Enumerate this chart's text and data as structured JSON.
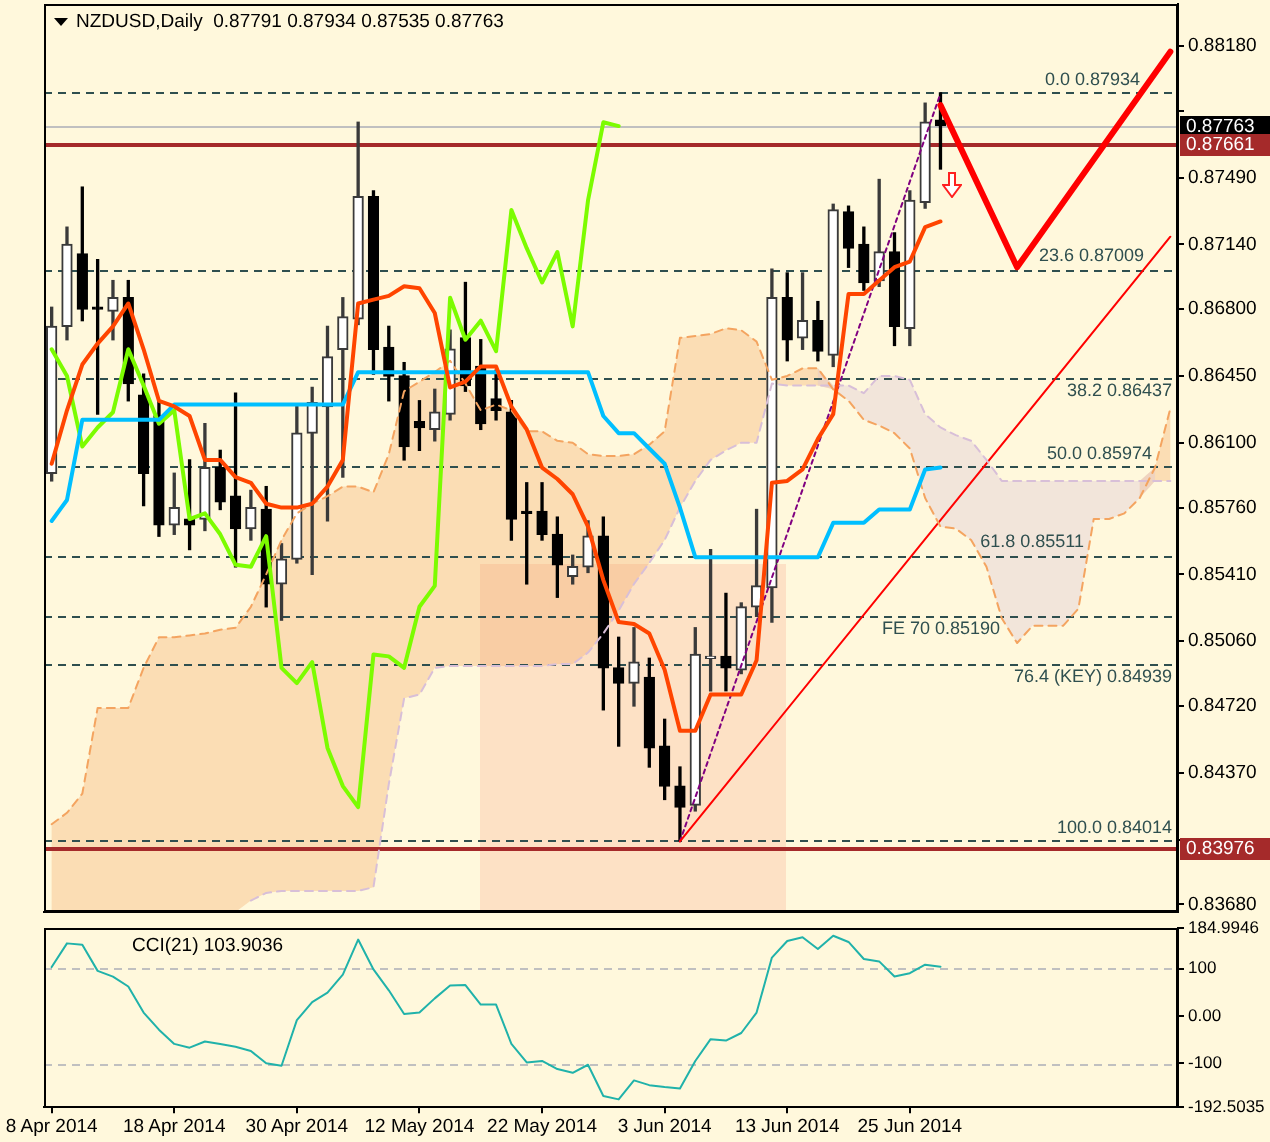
{
  "chart_data": [
    {
      "type": "candlestick",
      "title": "NZDUSD,Daily  0.87791 0.87934 0.87535 0.87763",
      "categories": [
        null,
        null,
        null,
        null,
        null,
        null,
        null,
        null,
        null,
        null,
        null,
        null,
        null,
        null,
        null,
        null,
        null,
        null,
        null,
        null,
        null,
        null,
        null,
        null,
        null,
        null,
        null,
        null,
        null,
        null,
        null,
        null,
        null,
        null,
        null,
        null,
        null,
        null,
        null,
        null,
        null,
        null,
        null,
        null,
        null,
        null,
        null,
        null,
        null,
        null,
        null,
        null,
        null,
        null,
        null,
        null,
        null,
        null,
        null,
        null,
        null,
        null,
        null,
        null,
        null,
        null,
        null,
        null,
        null,
        null,
        null,
        null,
        null,
        null
      ],
      "ohlc": [
        [
          0.8594,
          0.8681,
          0.859,
          0.8671
        ],
        [
          0.8671,
          0.8723,
          0.8664,
          0.8714
        ],
        [
          0.8709,
          0.8744,
          0.8674,
          0.868
        ],
        [
          0.8681,
          0.8706,
          0.8625,
          0.868
        ],
        [
          0.8679,
          0.8695,
          0.8664,
          0.8686
        ],
        [
          0.8686,
          0.8695,
          0.8632,
          0.8641
        ],
        [
          0.8635,
          0.8646,
          0.8577,
          0.8594
        ],
        [
          0.8624,
          0.8632,
          0.8561,
          0.8567
        ],
        [
          0.8567,
          0.8594,
          0.8562,
          0.8576
        ],
        [
          0.857,
          0.8601,
          0.8554,
          0.8567
        ],
        [
          0.857,
          0.862,
          0.8564,
          0.8597
        ],
        [
          0.8597,
          0.8606,
          0.8575,
          0.8579
        ],
        [
          0.8582,
          0.8636,
          0.8545,
          0.8565
        ],
        [
          0.8565,
          0.8585,
          0.8559,
          0.8576
        ],
        [
          0.8575,
          0.8587,
          0.8524,
          0.8536
        ],
        [
          0.8536,
          0.8557,
          0.8517,
          0.8549
        ],
        [
          0.8549,
          0.8629,
          0.8547,
          0.8615
        ],
        [
          0.8615,
          0.8639,
          0.8541,
          0.8631
        ],
        [
          0.8629,
          0.8671,
          0.8569,
          0.8655
        ],
        [
          0.8659,
          0.8686,
          0.8592,
          0.8676
        ],
        [
          0.8675,
          0.8778,
          0.8672,
          0.8739
        ],
        [
          0.8739,
          0.8742,
          0.8646,
          0.8659
        ],
        [
          0.866,
          0.8671,
          0.8632,
          0.8645
        ],
        [
          0.8645,
          0.8652,
          0.8601,
          0.8608
        ],
        [
          0.8621,
          0.8632,
          0.8606,
          0.8618
        ],
        [
          0.8617,
          0.8638,
          0.8611,
          0.8626
        ],
        [
          0.8625,
          0.8669,
          0.8622,
          0.8659
        ],
        [
          0.8665,
          0.8694,
          0.8637,
          0.864
        ],
        [
          0.865,
          0.8664,
          0.8617,
          0.862
        ],
        [
          0.8633,
          0.8648,
          0.8622,
          0.8627
        ],
        [
          0.8626,
          0.8632,
          0.8559,
          0.857
        ],
        [
          0.8574,
          0.8589,
          0.8536,
          0.8573
        ],
        [
          0.8574,
          0.8589,
          0.8559,
          0.8562
        ],
        [
          0.8562,
          0.8571,
          0.8529,
          0.8546
        ],
        [
          0.854,
          0.8551,
          0.8536,
          0.8545
        ],
        [
          0.8545,
          0.8569,
          0.8542,
          0.8561
        ],
        [
          0.8561,
          0.8571,
          0.847,
          0.8492
        ],
        [
          0.8492,
          0.8508,
          0.8451,
          0.8484
        ],
        [
          0.8484,
          0.8513,
          0.8472,
          0.8495
        ],
        [
          0.8487,
          0.8497,
          0.844,
          0.845
        ],
        [
          0.8451,
          0.8465,
          0.8423,
          0.843
        ],
        [
          0.843,
          0.844,
          0.84014,
          0.8419
        ],
        [
          0.842,
          0.8513,
          0.8417,
          0.8499
        ],
        [
          0.8497,
          0.8554,
          0.848,
          0.8498
        ],
        [
          0.8498,
          0.8531,
          0.848,
          0.8492
        ],
        [
          0.8491,
          0.8526,
          0.8489,
          0.8524
        ],
        [
          0.8524,
          0.8575,
          0.8519,
          0.8535
        ],
        [
          0.8534,
          0.8701,
          0.8516,
          0.8686
        ],
        [
          0.8686,
          0.8699,
          0.8653,
          0.8664
        ],
        [
          0.8665,
          0.8699,
          0.8659,
          0.8674
        ],
        [
          0.8674,
          0.8684,
          0.8653,
          0.8658
        ],
        [
          0.8656,
          0.8735,
          0.865,
          0.8732
        ],
        [
          0.8731,
          0.8734,
          0.8702,
          0.8712
        ],
        [
          0.8714,
          0.8723,
          0.869,
          0.8694
        ],
        [
          0.8695,
          0.8748,
          0.8692,
          0.871
        ],
        [
          0.871,
          0.872,
          0.8661,
          0.8671
        ],
        [
          0.867,
          0.8742,
          0.8661,
          0.8737
        ],
        [
          0.8736,
          0.8788,
          0.8733,
          0.8778
        ],
        [
          0.87791,
          0.87934,
          0.87535,
          0.87763
        ],
        null,
        null,
        null,
        null,
        null,
        null,
        null,
        null,
        null,
        null,
        null,
        null,
        null,
        null,
        null
      ],
      "series": [
        {
          "type": "line",
          "color": "#ff4500",
          "values": [
            0.8599,
            0.8627,
            0.8651,
            0.8662,
            0.8671,
            0.8683,
            0.8659,
            0.8632,
            0.8629,
            0.8624,
            0.8601,
            0.8601,
            0.8592,
            0.8589,
            0.8578,
            0.8576,
            0.8576,
            0.8578,
            0.8587,
            0.8601,
            0.8683,
            0.8685,
            0.8687,
            0.8692,
            0.8691,
            0.8678,
            0.8639,
            0.8642,
            0.865,
            0.865,
            0.8629,
            0.8617,
            0.8597,
            0.8591,
            0.8583,
            0.8566,
            0.8538,
            0.8516,
            0.8515,
            0.851,
            0.8491,
            0.8459,
            0.8459,
            0.8478,
            0.8478,
            0.8478,
            0.8496,
            0.8589,
            0.859,
            0.8596,
            0.8612,
            0.8625,
            0.8688,
            0.8688,
            0.8695,
            0.8702,
            0.8705,
            0.8723,
            0.8726,
            null,
            null,
            null,
            null,
            null,
            null,
            null,
            null,
            null,
            null,
            null,
            null,
            null,
            null,
            null
          ]
        },
        {
          "type": "line",
          "color": "#00bfff",
          "values": [
            0.8569,
            0.858,
            0.8622,
            0.8622,
            0.8622,
            0.8622,
            0.8622,
            0.8622,
            0.863,
            0.863,
            0.863,
            0.863,
            0.863,
            0.863,
            0.863,
            0.863,
            0.863,
            0.863,
            0.863,
            0.863,
            0.8647,
            0.8647,
            0.8647,
            0.8647,
            0.8647,
            0.8647,
            0.8647,
            0.8647,
            0.8647,
            0.8647,
            0.8647,
            0.8647,
            0.8647,
            0.8647,
            0.8647,
            0.8647,
            0.8624,
            0.8615,
            0.8615,
            0.8607,
            0.8599,
            0.8576,
            0.855,
            0.855,
            0.855,
            0.855,
            0.855,
            0.855,
            0.855,
            0.855,
            0.855,
            0.8568,
            0.8568,
            0.8568,
            0.8575,
            0.8575,
            0.8575,
            0.8596,
            0.8597,
            null,
            null,
            null,
            null,
            null,
            null,
            null,
            null,
            null,
            null,
            null,
            null,
            null,
            null,
            null
          ]
        },
        {
          "type": "line",
          "color": "#7cfc00",
          "values": [
            0.8659,
            0.8645,
            0.8608,
            0.8618,
            0.8626,
            0.8659,
            0.864,
            0.862,
            0.8627,
            0.857,
            0.8573,
            0.8562,
            0.8546,
            0.8545,
            0.8561,
            0.8492,
            0.8484,
            0.8495,
            0.845,
            0.843,
            0.8419,
            0.8499,
            0.8498,
            0.8492,
            0.8524,
            0.8535,
            0.8686,
            0.8664,
            0.8674,
            0.8658,
            0.8732,
            0.8712,
            0.8694,
            0.871,
            0.8671,
            0.8737,
            0.8778,
            0.8776,
            null,
            null,
            null,
            null,
            null,
            null,
            null,
            null,
            null,
            null,
            null,
            null,
            null,
            null,
            null,
            null,
            null,
            null,
            null,
            null,
            null,
            null,
            null,
            null,
            null,
            null,
            null,
            null,
            null,
            null,
            null,
            null,
            null,
            null,
            null,
            null
          ]
        },
        {
          "type": "line",
          "color": "#f4a460",
          "line_style": "dashed",
          "values": [
            0.841,
            0.8416,
            0.8426,
            0.8471,
            0.8471,
            0.8471,
            0.8492,
            0.8508,
            0.8508,
            0.8509,
            0.851,
            0.8512,
            0.8513,
            0.8524,
            0.8541,
            0.8559,
            0.8573,
            0.8578,
            0.8582,
            0.8587,
            0.8587,
            0.8584,
            0.8604,
            0.8637,
            0.8642,
            0.8647,
            0.8653,
            0.8641,
            0.8627,
            0.863,
            0.8627,
            0.8616,
            0.8616,
            0.8611,
            0.861,
            0.8604,
            0.8603,
            0.8603,
            0.8604,
            0.8609,
            0.8616,
            0.8665,
            0.8666,
            0.8667,
            0.867,
            0.8669,
            0.8663,
            0.8643,
            0.8645,
            0.8649,
            0.8649,
            0.8638,
            0.8632,
            0.8622,
            0.8619,
            0.8615,
            0.8607,
            0.8581,
            0.8566,
            0.8565,
            0.8559,
            0.8545,
            0.8518,
            0.8505,
            0.8514,
            0.8514,
            0.8514,
            0.8523,
            0.857,
            0.857,
            0.8573,
            0.8581,
            0.8597,
            0.8628
          ],
          "lower": [
            0.8364,
            0.8364,
            0.8364,
            0.8364,
            0.8364,
            0.8364,
            0.8364,
            0.8364,
            0.8364,
            0.8364,
            0.8364,
            0.8364,
            0.8364,
            0.837,
            0.8374,
            0.8375,
            0.8375,
            0.8375,
            0.8375,
            0.8375,
            0.8375,
            0.8377,
            0.8431,
            0.8476,
            0.8478,
            0.8492,
            0.8493,
            0.8493,
            0.8493,
            0.8493,
            0.8493,
            0.8493,
            0.8493,
            0.8494,
            0.8494,
            0.85,
            0.851,
            0.8522,
            0.8536,
            0.8547,
            0.8559,
            0.8576,
            0.859,
            0.8601,
            0.8606,
            0.861,
            0.861,
            0.8641,
            0.864,
            0.864,
            0.864,
            0.8638,
            null,
            null,
            null,
            null,
            null,
            null,
            null,
            null,
            null,
            null,
            null,
            null,
            null,
            null,
            null,
            null,
            null,
            null,
            null,
            0.8581,
            0.859,
            0.859
          ],
          "upper": [
            0.841,
            0.8416,
            0.8426,
            0.8471,
            0.8471,
            0.8471,
            0.8492,
            0.8508,
            0.8508,
            0.8509,
            0.851,
            0.8512,
            0.8513,
            0.8524,
            0.8541,
            0.8559,
            0.8573,
            0.8578,
            0.8582,
            0.8587,
            0.8587,
            0.8584,
            0.8604,
            0.8637,
            0.8642,
            0.8647,
            0.8653,
            0.8641,
            0.8627,
            0.863,
            0.8627,
            0.8616,
            0.8616,
            0.8611,
            0.861,
            0.8604,
            0.8603,
            0.8603,
            0.8604,
            0.8609,
            0.8616,
            0.8665,
            0.8666,
            0.8667,
            0.867,
            0.8669,
            0.8663,
            0.8643,
            0.8645,
            0.8649,
            0.8649,
            0.864,
            null,
            null,
            null,
            null,
            null,
            null,
            null,
            null,
            null,
            null,
            null,
            null,
            null,
            null,
            null,
            null,
            null,
            null,
            null,
            0.859,
            0.8597,
            0.8628
          ]
        },
        {
          "type": "line",
          "color": "#d8bfd8",
          "line_style": "dashed",
          "values": [
            null,
            null,
            null,
            null,
            null,
            null,
            null,
            null,
            null,
            null,
            null,
            null,
            null,
            0.837,
            0.8374,
            0.8375,
            0.8375,
            0.8375,
            0.8375,
            0.8375,
            0.8375,
            0.8377,
            0.8431,
            0.8476,
            0.8478,
            0.8492,
            0.8493,
            0.8493,
            0.8493,
            0.8493,
            0.8493,
            0.8493,
            0.8493,
            0.8494,
            0.8494,
            0.85,
            0.851,
            0.8522,
            0.8536,
            0.8547,
            0.8559,
            0.8576,
            0.859,
            0.8601,
            0.8606,
            0.861,
            0.861,
            0.8641,
            0.864,
            0.864,
            0.864,
            0.864,
            0.864,
            0.8636,
            0.8645,
            0.8645,
            0.8643,
            0.8625,
            0.8618,
            0.8614,
            0.8611,
            0.8601,
            0.859,
            0.859,
            0.859,
            0.859,
            0.859,
            0.859,
            0.859,
            0.859,
            0.859,
            0.859,
            0.859,
            0.859
          ],
          "lower": [
            null,
            null,
            null,
            null,
            null,
            null,
            null,
            null,
            null,
            null,
            null,
            null,
            null,
            null,
            null,
            null,
            null,
            null,
            null,
            null,
            null,
            null,
            null,
            null,
            null,
            null,
            null,
            null,
            null,
            null,
            null,
            null,
            null,
            null,
            null,
            null,
            null,
            null,
            null,
            null,
            null,
            null,
            null,
            null,
            null,
            null,
            null,
            null,
            null,
            null,
            0.864,
            0.8638,
            0.8632,
            0.8622,
            0.8619,
            0.8615,
            0.8607,
            0.8581,
            0.8566,
            0.8565,
            0.8559,
            0.8545,
            0.8518,
            0.8505,
            0.8514,
            0.8514,
            0.8514,
            0.8523,
            0.857,
            0.857,
            0.8573,
            0.8581,
            0.859,
            null
          ],
          "upper": [
            null,
            null,
            null,
            null,
            null,
            null,
            null,
            null,
            null,
            null,
            null,
            null,
            null,
            null,
            null,
            null,
            null,
            null,
            null,
            null,
            null,
            null,
            null,
            null,
            null,
            null,
            null,
            null,
            null,
            null,
            null,
            null,
            null,
            null,
            null,
            null,
            null,
            null,
            null,
            null,
            null,
            null,
            null,
            null,
            null,
            null,
            null,
            null,
            null,
            null,
            0.8649,
            0.864,
            0.864,
            0.8636,
            0.8645,
            0.8645,
            0.8643,
            0.8625,
            0.8618,
            0.8614,
            0.8611,
            0.8601,
            0.859,
            0.859,
            0.859,
            0.859,
            0.859,
            0.859,
            0.859,
            0.859,
            0.859,
            0.859,
            0.8597,
            null
          ]
        },
        {
          "type": "line",
          "color": "#ff0000",
          "values": [
            null,
            null,
            null,
            null,
            null,
            null,
            null,
            null,
            null,
            null,
            null,
            null,
            null,
            null,
            null,
            null,
            null,
            null,
            null,
            null,
            null,
            null,
            null,
            null,
            null,
            null,
            null,
            null,
            null,
            null,
            null,
            null,
            null,
            null,
            null,
            null,
            null,
            null,
            null,
            null,
            null,
            null,
            null,
            null,
            null,
            null,
            null,
            null,
            null,
            null,
            null,
            null,
            null,
            null,
            null,
            null,
            null,
            null,
            0.8787,
            null,
            null,
            null,
            null,
            0.8702,
            null,
            null,
            null,
            null,
            null,
            null,
            null,
            null,
            null,
            0.8815
          ]
        },
        {
          "type": "line",
          "color": "#ff0000",
          "values": [
            null,
            null,
            null,
            null,
            null,
            null,
            null,
            null,
            null,
            null,
            null,
            null,
            null,
            null,
            null,
            null,
            null,
            null,
            null,
            null,
            null,
            null,
            null,
            null,
            null,
            null,
            null,
            null,
            null,
            null,
            null,
            null,
            null,
            null,
            null,
            null,
            null,
            null,
            null,
            null,
            null,
            0.8401,
            null,
            null,
            null,
            null,
            null,
            null,
            null,
            null,
            null,
            null,
            null,
            null,
            null,
            null,
            null,
            null,
            null,
            null,
            null,
            null,
            null,
            null,
            null,
            null,
            null,
            null,
            null,
            null,
            null,
            null,
            null,
            0.8718
          ]
        },
        {
          "type": "line",
          "color": "#800080",
          "line_style": "dotted",
          "values": [
            null,
            null,
            null,
            null,
            null,
            null,
            null,
            null,
            null,
            null,
            null,
            null,
            null,
            null,
            null,
            null,
            null,
            null,
            null,
            null,
            null,
            null,
            null,
            null,
            null,
            null,
            null,
            null,
            null,
            null,
            null,
            null,
            null,
            null,
            null,
            null,
            null,
            null,
            null,
            null,
            null,
            0.8401,
            null,
            null,
            null,
            null,
            null,
            null,
            null,
            null,
            null,
            null,
            null,
            null,
            null,
            null,
            null,
            null,
            0.8793,
            null,
            null,
            null,
            null,
            null,
            null,
            null,
            null,
            null,
            null,
            null,
            null,
            null,
            null,
            null
          ]
        }
      ],
      "ylim": [
        0.8364,
        0.884
      ],
      "yticks": [
        {
          "value": 0.8368,
          "label": "0.83680"
        },
        {
          "value": 0.8402,
          "label": null
        },
        {
          "value": 0.8437,
          "label": "0.84370"
        },
        {
          "value": 0.8472,
          "label": "0.84720"
        },
        {
          "value": 0.8506,
          "label": "0.85060"
        },
        {
          "value": 0.8541,
          "label": "0.85410"
        },
        {
          "value": 0.8576,
          "label": "0.85760"
        },
        {
          "value": 0.861,
          "label": "0.86100"
        },
        {
          "value": 0.8645,
          "label": "0.86450"
        },
        {
          "value": 0.868,
          "label": "0.86800"
        },
        {
          "value": 0.8714,
          "label": "0.87140"
        },
        {
          "value": 0.8749,
          "label": "0.87490"
        },
        {
          "value": 0.8784,
          "label": null
        },
        {
          "value": 0.8818,
          "label": "0.88180"
        }
      ],
      "tick_labels": "y",
      "ref_lines": [
        {
          "axis": "y",
          "value": 0.87934,
          "label": "0.0 0.87934",
          "color": "#2f4f4f",
          "line_style": "dashed"
        },
        {
          "axis": "y",
          "value": 0.87009,
          "label": "23.6 0.87009",
          "color": "#2f4f4f",
          "line_style": "dashed"
        },
        {
          "axis": "y",
          "value": 0.86437,
          "label": "38.2 0.86437",
          "color": "#2f4f4f",
          "line_style": "dashed"
        },
        {
          "axis": "y",
          "value": 0.85974,
          "label": "50.0 0.85974",
          "color": "#2f4f4f",
          "line_style": "dashed"
        },
        {
          "axis": "y",
          "value": 0.85511,
          "label": "61.8 0.85511",
          "color": "#2f4f4f",
          "line_style": "dashed"
        },
        {
          "axis": "y",
          "value": 0.8519,
          "label": "FE 70 0.85190",
          "color": "#2f4f4f",
          "line_style": "dashed"
        },
        {
          "axis": "y",
          "value": 0.84939,
          "label": "76.4 (KEY) 0.84939",
          "color": "#2f4f4f",
          "line_style": "dashed"
        },
        {
          "axis": "y",
          "value": 0.84014,
          "label": "100.0 0.84014",
          "color": "#2f4f4f",
          "line_style": "dashed"
        },
        {
          "axis": "y",
          "value": 0.87763,
          "label": "0.87763",
          "color": "#c0c0c0"
        },
        {
          "axis": "y",
          "value": 0.87661,
          "label": "0.87661",
          "color": "#a52a2a"
        },
        {
          "axis": "y",
          "value": 0.83976,
          "label": "0.83976",
          "color": "#a52a2a"
        }
      ]
    },
    {
      "type": "line",
      "title": "CCI(21) 103.9036",
      "categories": [
        "8 Apr 2014",
        null,
        null,
        null,
        null,
        null,
        null,
        null,
        "18 Apr 2014",
        null,
        null,
        null,
        null,
        null,
        null,
        null,
        "30 Apr 2014",
        null,
        null,
        null,
        null,
        null,
        null,
        null,
        "12 May 2014",
        null,
        null,
        null,
        null,
        null,
        null,
        null,
        "22 May 2014",
        null,
        null,
        null,
        null,
        null,
        null,
        null,
        "3 Jun 2014",
        null,
        null,
        null,
        null,
        null,
        null,
        null,
        "13 Jun 2014",
        null,
        null,
        null,
        null,
        null,
        null,
        null,
        "25 Jun 2014",
        null,
        null,
        null,
        null,
        null,
        null,
        null,
        null,
        null,
        null,
        null,
        null,
        null,
        null,
        null,
        null,
        null
      ],
      "values": [
        103,
        153,
        150,
        95,
        83,
        62,
        7,
        -29,
        -59,
        -67,
        -54,
        -59,
        -65,
        -74,
        -100,
        -105,
        -9,
        29,
        49,
        87,
        161,
        98,
        54,
        4,
        7,
        37,
        64,
        65,
        24,
        24,
        -59,
        -98,
        -95,
        -112,
        -120,
        -103,
        -169,
        -176,
        -136,
        -146,
        -150,
        -153,
        -95,
        -49,
        -52,
        -36,
        7,
        123,
        158,
        166,
        141,
        169,
        156,
        120,
        115,
        83,
        90,
        108,
        103.9036,
        null,
        null,
        null,
        null,
        null,
        null,
        null,
        null,
        null,
        null,
        null,
        null,
        null,
        null,
        null
      ],
      "color": "#20b2aa",
      "ylim": [
        -192.5035,
        184.9946
      ],
      "yticks": [
        -192.5035,
        -100,
        {
          "value": 0,
          "label": "0.00"
        },
        100,
        184.9946
      ],
      "ref_lines": [
        {
          "axis": "y",
          "value": 100,
          "color": "#c0c0c0",
          "line_style": "dashed"
        },
        {
          "axis": "y",
          "value": -100,
          "color": "#c0c0c0",
          "line_style": "dashed"
        }
      ]
    }
  ]
}
